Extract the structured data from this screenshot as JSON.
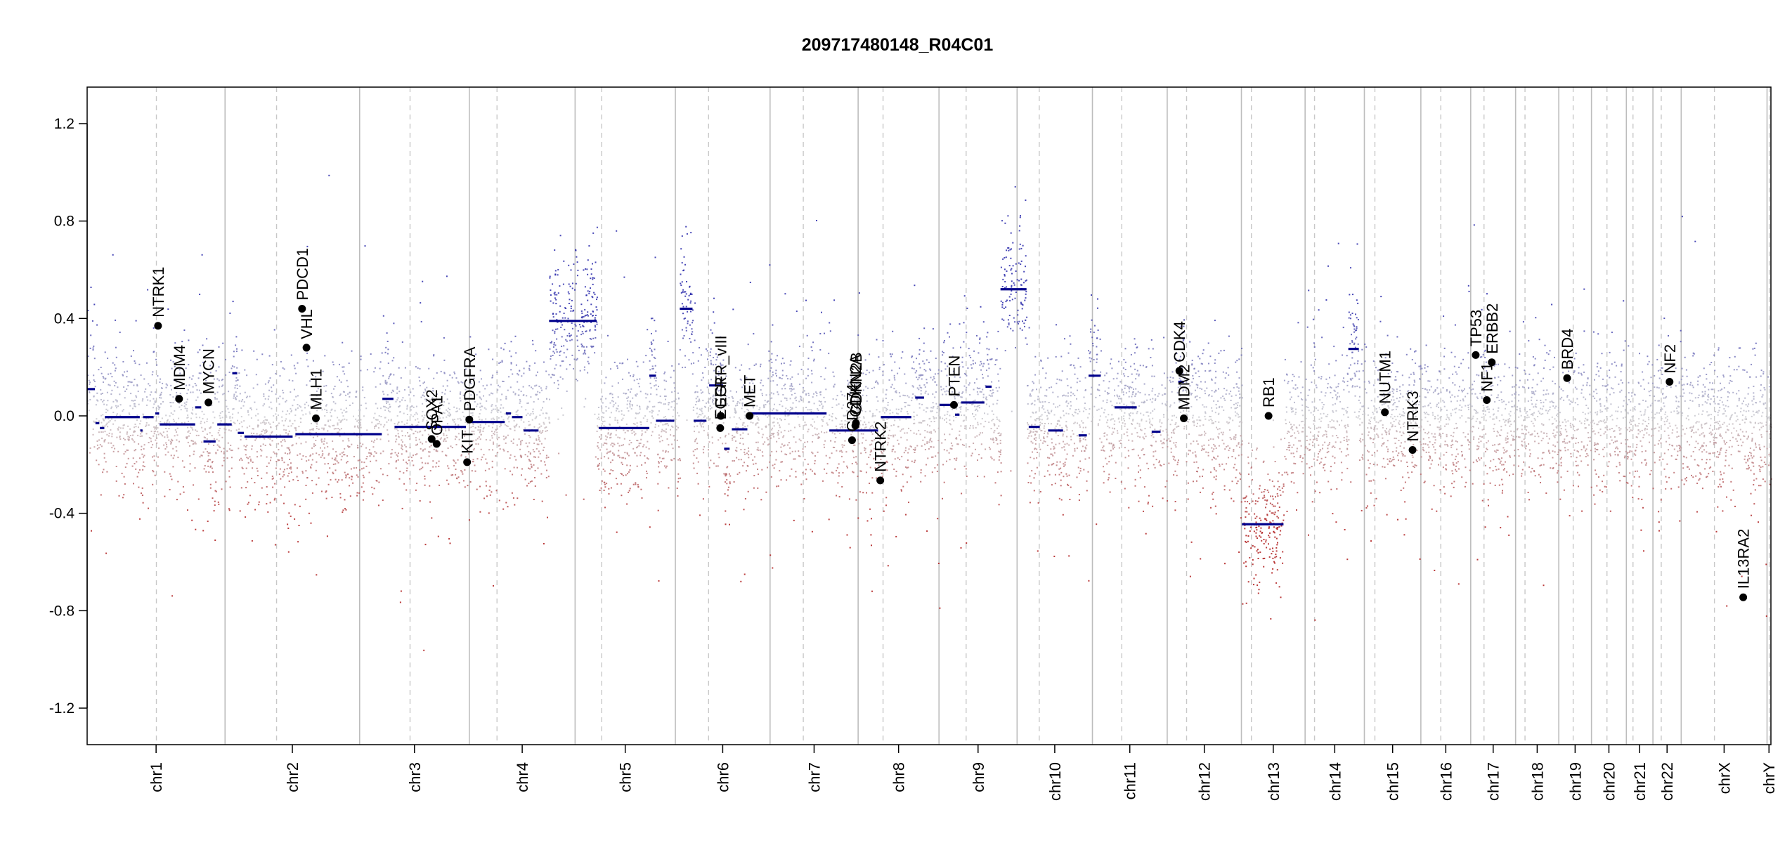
{
  "chart_data": {
    "type": "scatter",
    "title": "209717480148_R04C01",
    "xlabel": "",
    "ylabel": "",
    "ylim": [
      -1.35,
      1.35
    ],
    "yticks": [
      -1.2,
      -0.8,
      -0.4,
      0.0,
      0.4,
      0.8,
      1.2
    ],
    "ytick_labels": [
      "-1.2",
      "-0.8",
      "-0.4",
      "0.0",
      "0.4",
      "0.8",
      "1.2"
    ],
    "x_unit": "Mb (cumulative genome position)",
    "xlim": [
      0,
      3040
    ],
    "chromosomes": [
      {
        "name": "chr1",
        "start": 0,
        "len": 249,
        "centromere": 125
      },
      {
        "name": "chr2",
        "start": 249,
        "len": 243,
        "centromere": 93
      },
      {
        "name": "chr3",
        "start": 492,
        "len": 198,
        "centromere": 91
      },
      {
        "name": "chr4",
        "start": 690,
        "len": 191,
        "centromere": 50
      },
      {
        "name": "chr5",
        "start": 881,
        "len": 181,
        "centromere": 48
      },
      {
        "name": "chr6",
        "start": 1062,
        "len": 171,
        "centromere": 60
      },
      {
        "name": "chr7",
        "start": 1233,
        "len": 159,
        "centromere": 60
      },
      {
        "name": "chr8",
        "start": 1392,
        "len": 146,
        "centromere": 45
      },
      {
        "name": "chr9",
        "start": 1538,
        "len": 141,
        "centromere": 49
      },
      {
        "name": "chr10",
        "start": 1679,
        "len": 136,
        "centromere": 40
      },
      {
        "name": "chr11",
        "start": 1815,
        "len": 135,
        "centromere": 53
      },
      {
        "name": "chr12",
        "start": 1950,
        "len": 134,
        "centromere": 35
      },
      {
        "name": "chr13",
        "start": 2084,
        "len": 115,
        "centromere": 18
      },
      {
        "name": "chr14",
        "start": 2199,
        "len": 107,
        "centromere": 17
      },
      {
        "name": "chr15",
        "start": 2306,
        "len": 102,
        "centromere": 19
      },
      {
        "name": "chr16",
        "start": 2408,
        "len": 90,
        "centromere": 36
      },
      {
        "name": "chr17",
        "start": 2498,
        "len": 81,
        "centromere": 24
      },
      {
        "name": "chr18",
        "start": 2579,
        "len": 78,
        "centromere": 17
      },
      {
        "name": "chr19",
        "start": 2657,
        "len": 59,
        "centromere": 26
      },
      {
        "name": "chr20",
        "start": 2716,
        "len": 63,
        "centromere": 28
      },
      {
        "name": "chr21",
        "start": 2779,
        "len": 48,
        "centromere": 12
      },
      {
        "name": "chr22",
        "start": 2827,
        "len": 51,
        "centromere": 15
      },
      {
        "name": "chrX",
        "start": 2878,
        "len": 155,
        "centromere": 60
      },
      {
        "name": "chrY",
        "start": 3033,
        "len": 7,
        "centromere": 4
      }
    ],
    "segments": [
      {
        "x0": 0,
        "x1": 14,
        "y": 0.11
      },
      {
        "x0": 15,
        "x1": 22,
        "y": -0.03
      },
      {
        "x0": 23,
        "x1": 31,
        "y": -0.05
      },
      {
        "x0": 32,
        "x1": 95,
        "y": -0.005
      },
      {
        "x0": 96,
        "x1": 100,
        "y": -0.06
      },
      {
        "x0": 101,
        "x1": 120,
        "y": -0.005
      },
      {
        "x0": 123,
        "x1": 130,
        "y": 0.01
      },
      {
        "x0": 131,
        "x1": 195,
        "y": -0.035
      },
      {
        "x0": 195,
        "x1": 206,
        "y": 0.035
      },
      {
        "x0": 210,
        "x1": 232,
        "y": -0.105
      },
      {
        "x0": 235,
        "x1": 261,
        "y": -0.035
      },
      {
        "x0": 262,
        "x1": 271,
        "y": 0.175
      },
      {
        "x0": 272,
        "x1": 283,
        "y": -0.07
      },
      {
        "x0": 284,
        "x1": 371,
        "y": -0.085
      },
      {
        "x0": 376,
        "x1": 532,
        "y": -0.075
      },
      {
        "x0": 533,
        "x1": 553,
        "y": 0.07
      },
      {
        "x0": 555,
        "x1": 684,
        "y": -0.045
      },
      {
        "x0": 690,
        "x1": 754,
        "y": -0.025
      },
      {
        "x0": 756,
        "x1": 765,
        "y": 0.01
      },
      {
        "x0": 767,
        "x1": 786,
        "y": -0.005
      },
      {
        "x0": 788,
        "x1": 815,
        "y": -0.06
      },
      {
        "x0": 834,
        "x1": 920,
        "y": 0.39
      },
      {
        "x0": 924,
        "x1": 1015,
        "y": -0.05
      },
      {
        "x0": 1015,
        "x1": 1027,
        "y": 0.165
      },
      {
        "x0": 1027,
        "x1": 1060,
        "y": -0.02
      },
      {
        "x0": 1070,
        "x1": 1093,
        "y": 0.44
      },
      {
        "x0": 1095,
        "x1": 1118,
        "y": -0.02
      },
      {
        "x0": 1123,
        "x1": 1148,
        "y": 0.125
      },
      {
        "x0": 1150,
        "x1": 1160,
        "y": -0.135
      },
      {
        "x0": 1164,
        "x1": 1192,
        "y": -0.055
      },
      {
        "x0": 1195,
        "x1": 1335,
        "y": 0.01
      },
      {
        "x0": 1340,
        "x1": 1428,
        "y": -0.06
      },
      {
        "x0": 1433,
        "x1": 1488,
        "y": -0.005
      },
      {
        "x0": 1495,
        "x1": 1511,
        "y": 0.075
      },
      {
        "x0": 1539,
        "x1": 1565,
        "y": 0.045
      },
      {
        "x0": 1567,
        "x1": 1575,
        "y": 0.005
      },
      {
        "x0": 1578,
        "x1": 1620,
        "y": 0.055
      },
      {
        "x0": 1622,
        "x1": 1633,
        "y": 0.12
      },
      {
        "x0": 1649,
        "x1": 1696,
        "y": 0.52
      },
      {
        "x0": 1700,
        "x1": 1720,
        "y": -0.045
      },
      {
        "x0": 1735,
        "x1": 1762,
        "y": -0.06
      },
      {
        "x0": 1790,
        "x1": 1805,
        "y": -0.08
      },
      {
        "x0": 1808,
        "x1": 1830,
        "y": 0.165
      },
      {
        "x0": 1855,
        "x1": 1895,
        "y": 0.035
      },
      {
        "x0": 1922,
        "x1": 1938,
        "y": -0.065
      },
      {
        "x0": 1970,
        "x1": 1980,
        "y": 0.14
      },
      {
        "x0": 2085,
        "x1": 2160,
        "y": -0.445
      },
      {
        "x0": 2277,
        "x1": 2296,
        "y": 0.275
      }
    ],
    "genes": [
      {
        "name": "NTRK1",
        "x": 128,
        "y": 0.37
      },
      {
        "name": "MDM4",
        "x": 166,
        "y": 0.07
      },
      {
        "name": "MYCN",
        "x": 219,
        "y": 0.055
      },
      {
        "name": "PDCD1",
        "x": 388,
        "y": 0.44
      },
      {
        "name": "VHL",
        "x": 396,
        "y": 0.28
      },
      {
        "name": "MLH1",
        "x": 413,
        "y": -0.01
      },
      {
        "name": "SOX2",
        "x": 622,
        "y": -0.095
      },
      {
        "name": "OPA1",
        "x": 631,
        "y": -0.115
      },
      {
        "name": "PDGFRA",
        "x": 690,
        "y": -0.015
      },
      {
        "name": "KIT",
        "x": 686,
        "y": -0.19
      },
      {
        "name": "EGFR_vIII",
        "x": 1144,
        "y": 0.0
      },
      {
        "name": "EGFR",
        "x": 1143,
        "y": -0.05
      },
      {
        "name": "MET",
        "x": 1196,
        "y": 0.0
      },
      {
        "name": "CD274",
        "x": 1381,
        "y": -0.1
      },
      {
        "name": "CDKN2A",
        "x": 1387,
        "y": -0.04
      },
      {
        "name": "CDKN2B",
        "x": 1388,
        "y": -0.03
      },
      {
        "name": "NTRK2",
        "x": 1432,
        "y": -0.265
      },
      {
        "name": "PTEN",
        "x": 1565,
        "y": 0.045
      },
      {
        "name": "CDK4",
        "x": 1972,
        "y": 0.185
      },
      {
        "name": "MDM2",
        "x": 1980,
        "y": -0.01
      },
      {
        "name": "RB1",
        "x": 2133,
        "y": 0.0
      },
      {
        "name": "NUTM1",
        "x": 2343,
        "y": 0.015
      },
      {
        "name": "NTRK3",
        "x": 2393,
        "y": -0.14
      },
      {
        "name": "TP53",
        "x": 2507,
        "y": 0.25
      },
      {
        "name": "NF1",
        "x": 2527,
        "y": 0.065
      },
      {
        "name": "ERBB2",
        "x": 2536,
        "y": 0.22
      },
      {
        "name": "BRD4",
        "x": 2672,
        "y": 0.155
      },
      {
        "name": "NF2",
        "x": 2857,
        "y": 0.14
      },
      {
        "name": "IL13RA2",
        "x": 2990,
        "y": -0.745
      }
    ]
  }
}
